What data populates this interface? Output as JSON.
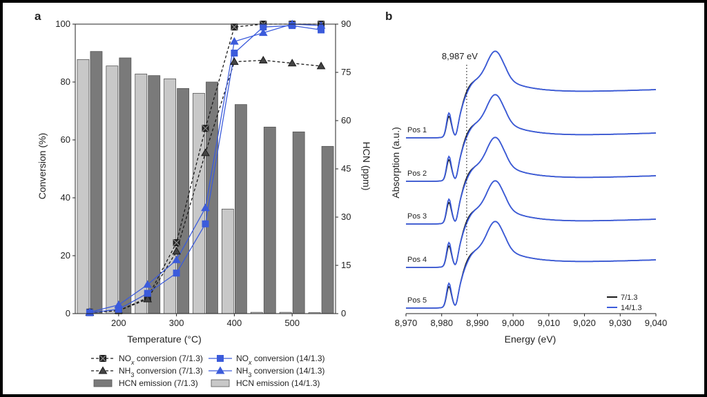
{
  "chart_data": [
    {
      "panel": "a",
      "type": "bar+line",
      "xlabel": "Temperature (°C)",
      "ylabel": "Conversion (%)",
      "y2label": "HCN (ppm)",
      "xlim": [
        125,
        575
      ],
      "ylim": [
        0,
        100
      ],
      "y2lim": [
        0,
        90
      ],
      "xticks": [
        200,
        300,
        400,
        500
      ],
      "yticks": [
        0,
        20,
        40,
        60,
        80,
        100
      ],
      "y2ticks": [
        0,
        15,
        30,
        45,
        60,
        75,
        90
      ],
      "temperatures": [
        150,
        200,
        250,
        300,
        350,
        400,
        450,
        500,
        550
      ],
      "bar_series": [
        {
          "name": "HCN emission (14/1.3)",
          "color": "#c8c8c8",
          "values": [
            79,
            77,
            74.5,
            73,
            68.5,
            32.5,
            0.4,
            0.4,
            0.3
          ]
        },
        {
          "name": "HCN emission (7/1.3)",
          "color": "#7a7a7a",
          "values": [
            81.5,
            79.5,
            74,
            70,
            72,
            65,
            58,
            56.5,
            52
          ]
        }
      ],
      "line_series": [
        {
          "name": "NOx conversion (7/1.3)",
          "color": "#1a1a1a",
          "dash": true,
          "marker": "square-x",
          "x": [
            150,
            200,
            250,
            300,
            350,
            400,
            450,
            500,
            550
          ],
          "y": [
            0.5,
            1,
            5.5,
            24.5,
            64,
            99,
            100,
            100,
            100
          ]
        },
        {
          "name": "NH3 conversion (7/1.3)",
          "color": "#1a1a1a",
          "dash": true,
          "marker": "triangle",
          "x": [
            150,
            200,
            250,
            300,
            350,
            400,
            450,
            500,
            550
          ],
          "y": [
            0.3,
            1,
            5,
            21.5,
            55.5,
            87,
            87.5,
            86.5,
            85.5
          ]
        },
        {
          "name": "NOx conversion (14/1.3)",
          "color": "#3b5bdb",
          "dash": false,
          "marker": "square",
          "x": [
            150,
            200,
            250,
            300,
            350,
            400,
            450,
            500,
            550
          ],
          "y": [
            0.3,
            1.5,
            7,
            14,
            31,
            90,
            99,
            99.5,
            98
          ]
        },
        {
          "name": "NH3 conversion (14/1.3)",
          "color": "#3b5bdb",
          "dash": false,
          "marker": "triangle",
          "x": [
            150,
            200,
            250,
            300,
            350,
            400,
            450,
            500,
            550
          ],
          "y": [
            0.5,
            3,
            10,
            18.5,
            36.5,
            94,
            97,
            100,
            99.5
          ]
        }
      ],
      "legend": [
        {
          "label": "NOx conversion (7/1.3)",
          "series": "NOx conversion (7/1.3)"
        },
        {
          "label": "NOx conversion (14/1.3)",
          "series": "NOx conversion (14/1.3)"
        },
        {
          "label": "NH3 conversion (7/1.3)",
          "series": "NH3 conversion (7/1.3)"
        },
        {
          "label": "NH3 conversion (14/1.3)",
          "series": "NH3 conversion (14/1.3)"
        },
        {
          "label": "HCN emission (7/1.3)",
          "series": "HCN emission (7/1.3)"
        },
        {
          "label": "HCN emission (14/1.3)",
          "series": "HCN emission (14/1.3)"
        }
      ]
    },
    {
      "panel": "b",
      "type": "line",
      "xlabel": "Energy (eV)",
      "ylabel": "Absorption (a.u.)",
      "xlim": [
        8970,
        9040
      ],
      "xticks": [
        8970,
        8980,
        8990,
        9000,
        9010,
        9020,
        9030,
        9040
      ],
      "xtick_labels": [
        "8,970",
        "8,980",
        "8,990",
        "9,000",
        "9,010",
        "9,020",
        "9,030",
        "9,040"
      ],
      "offsets": [
        "Pos 1",
        "Pos 2",
        "Pos 3",
        "Pos 4",
        "Pos 5"
      ],
      "annotation": {
        "label": "8,987 eV",
        "energy": 8987
      },
      "series": [
        {
          "name": "7/1.3",
          "color": "#1a1a1a"
        },
        {
          "name": "14/1.3",
          "color": "#3b5bdb"
        }
      ],
      "legend_position": "bottom-right"
    }
  ]
}
